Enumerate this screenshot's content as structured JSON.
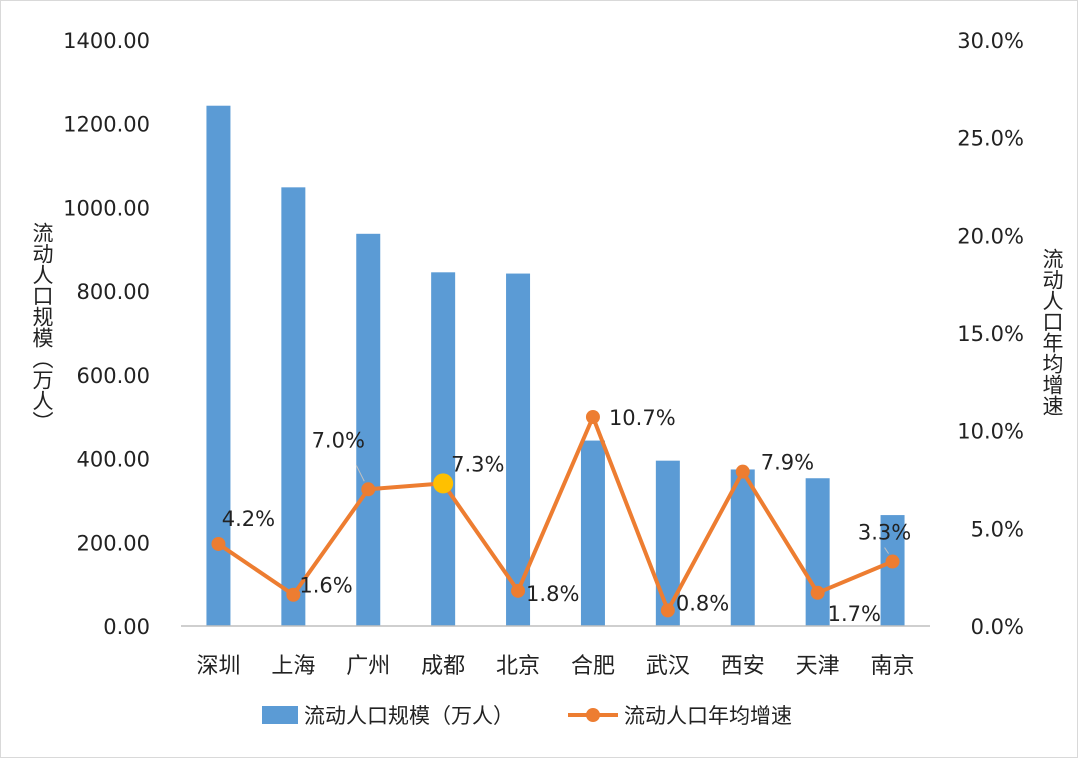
{
  "chart_data": {
    "type": "bar",
    "categories": [
      "深圳",
      "上海",
      "广州",
      "成都",
      "北京",
      "合肥",
      "武汉",
      "西安",
      "天津",
      "南京"
    ],
    "series": [
      {
        "name": "流动人口规模（万人）",
        "type": "bar",
        "axis": "left",
        "color": "#5b9bd5",
        "values": [
          1243,
          1048,
          937,
          845,
          842,
          443,
          395,
          374,
          353,
          265
        ]
      },
      {
        "name": "流动人口年均增速",
        "type": "line",
        "axis": "right",
        "color": "#ed7d31",
        "values": [
          4.2,
          1.6,
          7.0,
          7.3,
          1.8,
          10.7,
          0.8,
          7.9,
          1.7,
          3.3
        ],
        "labels": [
          "4.2%",
          "1.6%",
          "7.0%",
          "7.3%",
          "1.8%",
          "10.7%",
          "0.8%",
          "7.9%",
          "1.7%",
          "3.3%"
        ],
        "highlight_index": 3,
        "highlight_color": "#ffc000"
      }
    ],
    "left_axis": {
      "label": "流动人口规模（万人）",
      "min": 0,
      "max": 1400,
      "step": 200,
      "ticks": [
        "0.00",
        "200.00",
        "400.00",
        "600.00",
        "800.00",
        "1000.00",
        "1200.00",
        "1400.00"
      ]
    },
    "right_axis": {
      "label": "流动人口年均增速",
      "min": 0,
      "max": 30,
      "step": 5,
      "ticks": [
        "0.0%",
        "5.0%",
        "10.0%",
        "15.0%",
        "20.0%",
        "25.0%",
        "30.0%"
      ]
    },
    "grid": false,
    "legend": {
      "position": "bottom"
    }
  }
}
